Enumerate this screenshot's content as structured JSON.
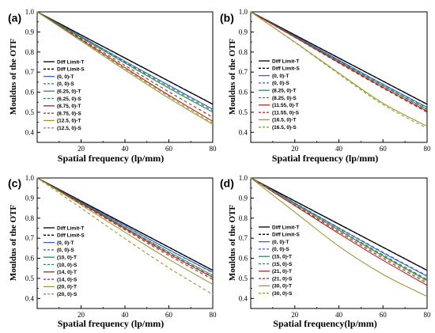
{
  "chart_data": [
    {
      "type": "line",
      "panel_label": "(a)",
      "xlabel": "Spatial frequency (lp/mm)",
      "ylabel": "Mouldus of the OTF",
      "xlim": [
        0,
        80
      ],
      "ylim": [
        0.35,
        1.0
      ],
      "xticks": [
        "20",
        "40",
        "60",
        "80"
      ],
      "yticks": [
        "0.4",
        "0.5",
        "0.6",
        "0.7",
        "0.8",
        "0.9",
        "1.0"
      ],
      "legend_position": "left",
      "x": [
        0,
        20,
        40,
        60,
        80
      ],
      "series": [
        {
          "name": "Diff Limit-T",
          "color": "#000000",
          "dash": false,
          "values": [
            1.0,
            0.885,
            0.77,
            0.655,
            0.54
          ]
        },
        {
          "name": "Diff Limit-S",
          "color": "#000000",
          "dash": true,
          "values": [
            1.0,
            0.885,
            0.77,
            0.655,
            0.54
          ]
        },
        {
          "name": "(0, 0)-T",
          "color": "#3a5fcd",
          "dash": false,
          "values": [
            1.0,
            0.877,
            0.754,
            0.634,
            0.515
          ]
        },
        {
          "name": "(0, 0)-S",
          "color": "#3a5fcd",
          "dash": true,
          "values": [
            1.0,
            0.877,
            0.754,
            0.634,
            0.515
          ]
        },
        {
          "name": "(6.25, 0)-T",
          "color": "#2e8b57",
          "dash": false,
          "values": [
            1.0,
            0.872,
            0.745,
            0.62,
            0.5
          ]
        },
        {
          "name": "(6.25, 0)-S",
          "color": "#2e8b57",
          "dash": true,
          "values": [
            1.0,
            0.874,
            0.749,
            0.627,
            0.507
          ]
        },
        {
          "name": "(8.75, 0)-T",
          "color": "#b22222",
          "dash": false,
          "values": [
            1.0,
            0.862,
            0.722,
            0.585,
            0.455
          ]
        },
        {
          "name": "(8.75, 0)-S",
          "color": "#b22222",
          "dash": true,
          "values": [
            1.0,
            0.866,
            0.733,
            0.602,
            0.475
          ]
        },
        {
          "name": "(12.5, 0)-T",
          "color": "#9a9a3a",
          "dash": false,
          "values": [
            1.0,
            0.855,
            0.71,
            0.57,
            0.44
          ]
        },
        {
          "name": "(12.5, 0)-S",
          "color": "#9a9a3a",
          "dash": true,
          "values": [
            1.0,
            0.858,
            0.716,
            0.578,
            0.446
          ]
        }
      ]
    },
    {
      "type": "line",
      "panel_label": "(b)",
      "xlabel": "Spatial frequency (lp/mm)",
      "ylabel": "Mouldus of the OTF",
      "xlim": [
        0,
        80
      ],
      "ylim": [
        0.35,
        1.0
      ],
      "xticks": [
        "20",
        "40",
        "60",
        "80"
      ],
      "yticks": [
        "0.4",
        "0.5",
        "0.6",
        "0.7",
        "0.8",
        "0.9",
        "1.0"
      ],
      "legend_position": "right",
      "x": [
        0,
        20,
        40,
        60,
        80
      ],
      "series": [
        {
          "name": "Diff Limit-T",
          "color": "#000000",
          "dash": false,
          "values": [
            1.0,
            0.885,
            0.77,
            0.655,
            0.54
          ]
        },
        {
          "name": "Diff Limit-S",
          "color": "#000000",
          "dash": true,
          "values": [
            1.0,
            0.885,
            0.77,
            0.655,
            0.54
          ]
        },
        {
          "name": "(0, 0)-T",
          "color": "#3a5fcd",
          "dash": false,
          "values": [
            1.0,
            0.88,
            0.76,
            0.64,
            0.525
          ]
        },
        {
          "name": "(0, 0)-S",
          "color": "#3a5fcd",
          "dash": true,
          "values": [
            1.0,
            0.879,
            0.758,
            0.638,
            0.522
          ]
        },
        {
          "name": "(8.25, 0)-T",
          "color": "#2e8b57",
          "dash": false,
          "values": [
            1.0,
            0.877,
            0.754,
            0.632,
            0.515
          ]
        },
        {
          "name": "(8.25, 0)-S",
          "color": "#2e8b57",
          "dash": true,
          "values": [
            1.0,
            0.876,
            0.752,
            0.63,
            0.512
          ]
        },
        {
          "name": "(11.55, 0)-T",
          "color": "#b22222",
          "dash": false,
          "values": [
            1.0,
            0.874,
            0.748,
            0.624,
            0.505
          ]
        },
        {
          "name": "(11.55, 0)-S",
          "color": "#b22222",
          "dash": true,
          "values": [
            1.0,
            0.873,
            0.745,
            0.62,
            0.5
          ]
        },
        {
          "name": "(16.5, 0)-T",
          "color": "#9a9a3a",
          "dash": false,
          "values": [
            1.0,
            0.85,
            0.695,
            0.545,
            0.43
          ]
        },
        {
          "name": "(16.5, 0)-S",
          "color": "#9a9a3a",
          "dash": true,
          "values": [
            1.0,
            0.848,
            0.69,
            0.538,
            0.42
          ]
        }
      ]
    },
    {
      "type": "line",
      "panel_label": "(c)",
      "xlabel": "Spatial frequency (lp/mm)",
      "ylabel": "Mouldus of the OTF",
      "xlim": [
        0,
        80
      ],
      "ylim": [
        0.35,
        1.0
      ],
      "xticks": [
        "20",
        "40",
        "60",
        "80"
      ],
      "yticks": [
        "0.4",
        "0.5",
        "0.6",
        "0.7",
        "0.8",
        "0.9",
        "1.0"
      ],
      "legend_position": "left",
      "x": [
        0,
        20,
        40,
        60,
        80
      ],
      "series": [
        {
          "name": "Diff Limit-T",
          "color": "#000000",
          "dash": false,
          "values": [
            1.0,
            0.885,
            0.77,
            0.655,
            0.54
          ]
        },
        {
          "name": "Diff Limit-S",
          "color": "#000000",
          "dash": true,
          "values": [
            1.0,
            0.885,
            0.77,
            0.655,
            0.54
          ]
        },
        {
          "name": "(0, 0)-T",
          "color": "#3a5fcd",
          "dash": false,
          "values": [
            1.0,
            0.88,
            0.762,
            0.643,
            0.53
          ]
        },
        {
          "name": "(0, 0)-S",
          "color": "#3a5fcd",
          "dash": true,
          "values": [
            1.0,
            0.88,
            0.761,
            0.642,
            0.528
          ]
        },
        {
          "name": "(10, 0)-T",
          "color": "#2e8b57",
          "dash": false,
          "values": [
            1.0,
            0.877,
            0.754,
            0.632,
            0.515
          ]
        },
        {
          "name": "(10, 0)-S",
          "color": "#2e8b57",
          "dash": true,
          "values": [
            1.0,
            0.875,
            0.75,
            0.626,
            0.508
          ]
        },
        {
          "name": "(14, 0)-T",
          "color": "#b22222",
          "dash": false,
          "values": [
            1.0,
            0.874,
            0.748,
            0.622,
            0.505
          ]
        },
        {
          "name": "(14, 0)-S",
          "color": "#b22222",
          "dash": true,
          "values": [
            1.0,
            0.871,
            0.742,
            0.614,
            0.495
          ]
        },
        {
          "name": "(20, 0)-T",
          "color": "#9a9a3a",
          "dash": false,
          "values": [
            1.0,
            0.866,
            0.73,
            0.595,
            0.47
          ]
        },
        {
          "name": "(20, 0)-S",
          "color": "#9a9a3a",
          "dash": true,
          "values": [
            1.0,
            0.85,
            0.698,
            0.552,
            0.42
          ]
        }
      ]
    },
    {
      "type": "line",
      "panel_label": "(d)",
      "xlabel": "Spatial frequency(lp/mm)",
      "ylabel": "Mouldus of the OTF",
      "xlim": [
        0,
        80
      ],
      "ylim": [
        0.35,
        1.0
      ],
      "xticks": [
        "20",
        "40",
        "60",
        "80"
      ],
      "yticks": [
        "0.4",
        "0.5",
        "0.6",
        "0.7",
        "0.8",
        "0.9",
        "1.0"
      ],
      "legend_position": "right",
      "x": [
        0,
        20,
        40,
        60,
        80
      ],
      "series": [
        {
          "name": "Diff Limit-T",
          "color": "#000000",
          "dash": false,
          "values": [
            1.0,
            0.885,
            0.77,
            0.655,
            0.54
          ]
        },
        {
          "name": "Diff Limit-S",
          "color": "#000000",
          "dash": true,
          "values": [
            1.0,
            0.885,
            0.77,
            0.655,
            0.54
          ]
        },
        {
          "name": "(0, 0)-T",
          "color": "#3a5fcd",
          "dash": false,
          "values": [
            1.0,
            0.875,
            0.75,
            0.627,
            0.51
          ]
        },
        {
          "name": "(0, 0)-S",
          "color": "#3a5fcd",
          "dash": true,
          "values": [
            1.0,
            0.876,
            0.752,
            0.63,
            0.513
          ]
        },
        {
          "name": "(15, 0)-T",
          "color": "#2e8b57",
          "dash": false,
          "values": [
            1.0,
            0.87,
            0.74,
            0.612,
            0.49
          ]
        },
        {
          "name": "(15, 0)-S",
          "color": "#2e8b57",
          "dash": true,
          "values": [
            1.0,
            0.871,
            0.743,
            0.617,
            0.495
          ]
        },
        {
          "name": "(21, 0)-T",
          "color": "#b22222",
          "dash": false,
          "values": [
            1.0,
            0.862,
            0.723,
            0.59,
            0.465
          ]
        },
        {
          "name": "(21, 0)-S",
          "color": "#b22222",
          "dash": true,
          "values": [
            1.0,
            0.866,
            0.731,
            0.6,
            0.476
          ]
        },
        {
          "name": "(30, 0)-T",
          "color": "#9a9a3a",
          "dash": false,
          "values": [
            1.0,
            0.83,
            0.66,
            0.52,
            0.41
          ]
        },
        {
          "name": "(30, 0)-S",
          "color": "#9a9a3a",
          "dash": true,
          "values": [
            1.0,
            0.869,
            0.738,
            0.608,
            0.485
          ]
        }
      ]
    }
  ]
}
